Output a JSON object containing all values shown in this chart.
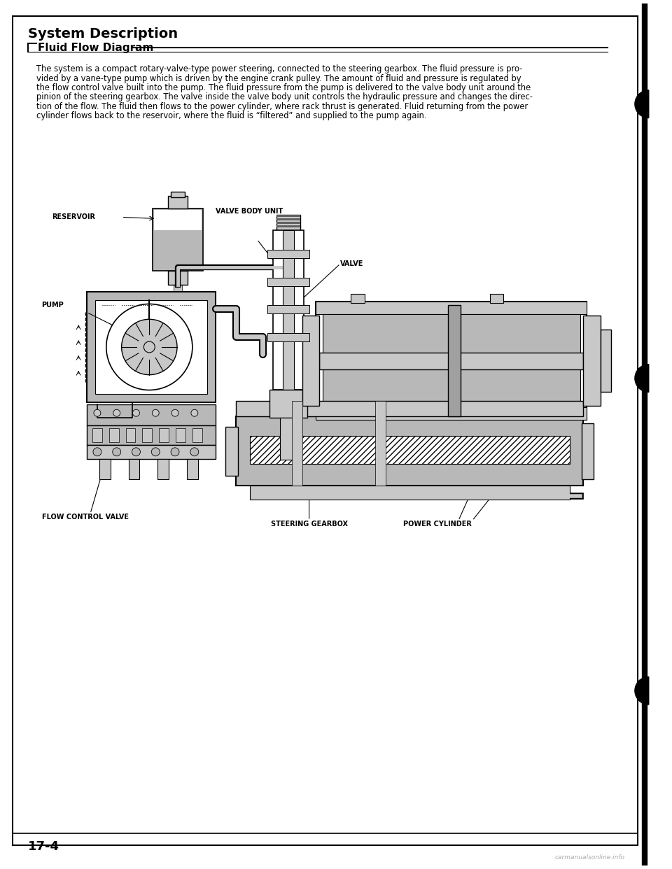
{
  "page_bg": "#ffffff",
  "title": "System Description",
  "section_label": "Fluid Flow Diagram",
  "page_number": "17-4",
  "body_text_lines": [
    "The system is a compact rotary-valve-type power steering, connected to the steering gearbox. The fluid pressure is pro-",
    "vided by a vane-type pump which is driven by the engine crank pulley. The amount of fluid and pressure is regulated by",
    "the flow control valve built into the pump. The fluid pressure from the pump is delivered to the valve body unit around the",
    "pinion of the steering gearbox. The valve inside the valve body unit controls the hydraulic pressure and changes the direc-",
    "tion of the flow. The fluid then flows to the power cylinder, where rack thrust is generated. Fluid returning from the power",
    "cylinder flows back to the reservoir, where the fluid is “filtered” and supplied to the pump again."
  ],
  "labels": {
    "reservoir": "RESERVOIR",
    "pump": "PUMP",
    "valve_body_unit": "VALVE BODY UNIT",
    "valve": "VALVE",
    "flow_control_valve": "FLOW CONTROL VALVE",
    "steering_gearbox": "STEERING GEARBOX",
    "power_cylinder": "POWER CYLINDER"
  },
  "watermark": "carmanualsonline.info",
  "title_fontsize": 14,
  "section_fontsize": 11,
  "body_fontsize": 8.3,
  "label_fontsize": 7.0,
  "page_num_fontsize": 13,
  "gray_light": "#c8c8c8",
  "gray_mid": "#a0a0a0",
  "gray_dark": "#606060",
  "gray_dots": "#888888",
  "black": "#000000",
  "white": "#ffffff",
  "stipple": "#b8b8b8"
}
